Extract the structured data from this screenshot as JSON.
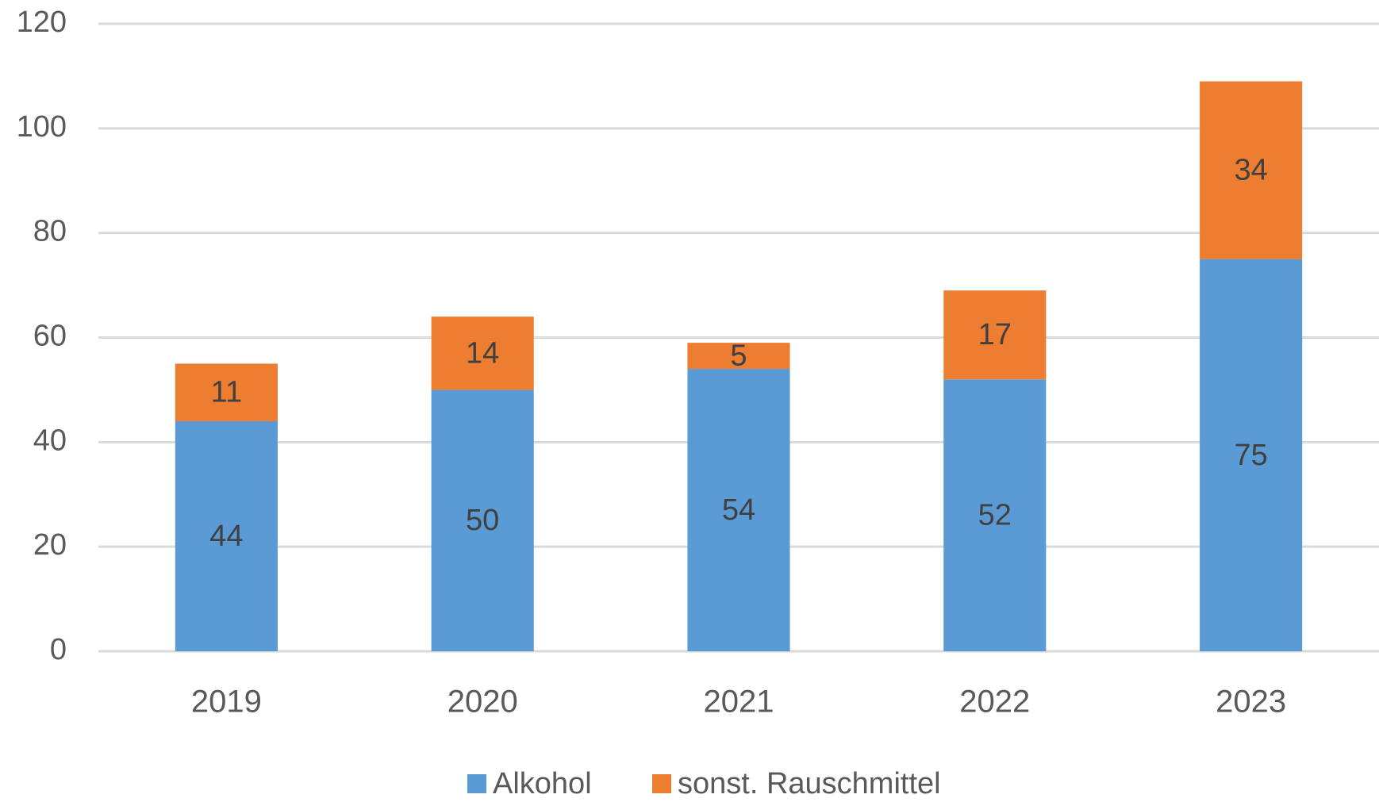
{
  "chart_data": {
    "type": "bar",
    "stacked": true,
    "categories": [
      "2019",
      "2020",
      "2021",
      "2022",
      "2023"
    ],
    "series": [
      {
        "name": "Alkohol",
        "color": "#5b9bd5",
        "values": [
          44,
          50,
          54,
          52,
          75
        ]
      },
      {
        "name": "sonst. Rauschmittel",
        "color": "#ed7d31",
        "values": [
          11,
          14,
          5,
          17,
          34
        ]
      }
    ],
    "ylim": [
      0,
      120
    ],
    "yticks": [
      0,
      20,
      40,
      60,
      80,
      100,
      120
    ],
    "grid": true,
    "legend": "bottom"
  }
}
